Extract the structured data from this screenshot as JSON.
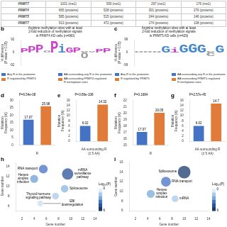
{
  "chart_data": [
    {
      "type": "table",
      "rows": [
        [
          "PRMT7",
          "1031 (me1)",
          "939 (me1)",
          "297 (me1)",
          "176 (me1)"
        ],
        [
          "PRMT4",
          "665 (proteins)",
          "528 (proteins)",
          "301 (proteins)",
          "276 (proteins)"
        ],
        [
          "PRMT5",
          "585 (proteins)",
          "515 (proteins)",
          "244 (proteins)",
          "146 (proteins)"
        ],
        [
          "PRMT7",
          "513 (proteins)",
          "472 (proteins)",
          "174 (proteins)",
          "108 (proteins)"
        ]
      ]
    },
    {
      "type": "logo",
      "panel": "b",
      "title": "Arginine methylation sites with at least\n2-fold reduction of methylation signals\nin PRMT4 KD cells (n=660)",
      "categories": [
        "P",
        "P",
        "P",
        "o",
        "P",
        "i",
        "G",
        "P",
        "o",
        "v",
        "P",
        "P"
      ],
      "values": [
        30,
        45,
        55,
        15,
        80,
        60,
        40,
        35,
        10,
        10,
        25,
        30
      ],
      "negative_values": [
        0,
        0,
        0,
        0,
        0,
        0,
        0,
        0,
        -40,
        0,
        0,
        0
      ],
      "colors": [
        "#cc44cc",
        "#cc44cc",
        "#cc44cc",
        "#999999",
        "#cc44cc",
        "#4488cc",
        "#cc44cc",
        "#cc44cc",
        "#999999",
        "#999999",
        "#cc44cc",
        "#cc44cc"
      ],
      "ylabel": "% difference\n(P value = 0.05)",
      "ylim": [
        -92,
        92
      ],
      "yticks": [
        -92,
        0,
        92
      ],
      "tick_labels": "y",
      "grid": false
    },
    {
      "type": "logo",
      "panel": "c",
      "title": "Arginine methylation sites with at least\n2-fold reduction of methylation signals\nin PRMT5 KD cells (n=429)",
      "categories": [
        "o",
        "o",
        "o",
        "G",
        "i",
        "G",
        "G",
        "G",
        "c",
        "G"
      ],
      "values": [
        10,
        12,
        10,
        50,
        35,
        65,
        70,
        60,
        10,
        55
      ],
      "negative_values": [
        0,
        0,
        0,
        0,
        0,
        0,
        0,
        0,
        -30,
        0
      ],
      "colors": [
        "#999999",
        "#999999",
        "#999999",
        "#4488cc",
        "#cc44cc",
        "#4488cc",
        "#4488cc",
        "#4488cc",
        "#999999",
        "#4488cc"
      ],
      "ylabel": "% difference\n(P value = 0.05)",
      "ylim": [
        -99,
        99
      ],
      "yticks": [
        -99,
        0,
        99
      ],
      "tick_labels": "y",
      "grid": false
    },
    {
      "type": "bar",
      "panel": "d",
      "subtitle": "P=6.54e-08",
      "categories": [
        null,
        null
      ],
      "series": [
        {
          "name": "Any R in the proteome",
          "color": "#4472c4",
          "values": [
            17.07,
            null
          ]
        },
        {
          "name": "R regulated by PRMT4",
          "color": "#e07b39",
          "values": [
            null,
            25.98
          ]
        }
      ],
      "xlabel": "R",
      "ylabel": "Mutation\nFrequency (%)",
      "ylim": [
        0,
        30
      ],
      "yticks": [
        0,
        5,
        10,
        15,
        20,
        25,
        30
      ],
      "data_labels": true,
      "tick_labels": "y",
      "grid": false,
      "legend": "top"
    },
    {
      "type": "bar",
      "panel": "e",
      "subtitle": "P=3.89e-108",
      "categories": [
        null,
        null
      ],
      "series": [
        {
          "name": "AA surrounding any R in the proteome",
          "color": "#4472c4",
          "values": [
            6.02,
            null
          ]
        },
        {
          "name": "AA surrounding PRMT4-regulated\nR methylation sites",
          "color": "#e07b39",
          "values": [
            null,
            14.32
          ]
        }
      ],
      "xlabel": "AA surrounding R\n(± 5 AA)",
      "ylabel": "Mutation\nFrequency (%)",
      "ylim": [
        0,
        16
      ],
      "yticks": [
        0,
        2,
        4,
        6,
        8,
        10,
        12,
        14,
        16
      ],
      "data_labels": true,
      "tick_labels": "y",
      "grid": false,
      "legend": "top"
    },
    {
      "type": "bar",
      "panel": "f",
      "subtitle": "P=0.1684",
      "categories": [
        null,
        null
      ],
      "series": [
        {
          "name": "Any R in the proteome",
          "color": "#4472c4",
          "values": [
            17.07,
            null
          ]
        },
        {
          "name": "R regulated by PRMT5",
          "color": "#e07b39",
          "values": [
            null,
            20.05
          ]
        }
      ],
      "xlabel": "R",
      "ylabel": "Mutation\nFrequency (%)",
      "ylim": [
        15,
        22
      ],
      "yticks": [
        15,
        16,
        17,
        18,
        19,
        20,
        21,
        22
      ],
      "data_labels": true,
      "tick_labels": "y",
      "grid": false,
      "legend": "top"
    },
    {
      "type": "bar",
      "panel": "g",
      "subtitle": "P=2.57e-45",
      "categories": [
        null,
        null
      ],
      "series": [
        {
          "name": "AA surrounding any R in the proteome",
          "color": "#4472c4",
          "values": [
            6.02,
            null
          ]
        },
        {
          "name": "AA surrounding PRMT5-regulated\nR methylation sites",
          "color": "#e07b39",
          "values": [
            null,
            14.7
          ]
        }
      ],
      "xlabel": "AA surrounding R\n(± 5 AA)",
      "ylabel": "Mutation\nFrequency (%)",
      "ylim": [
        0,
        16
      ],
      "yticks": [
        0,
        2,
        4,
        6,
        8,
        10,
        12,
        14,
        16
      ],
      "data_labels": true,
      "tick_labels": "y",
      "grid": false,
      "legend": "top"
    },
    {
      "type": "bubble",
      "panel": "h",
      "x": [
        5.5,
        9.5,
        4.0,
        9.0,
        7.5,
        5.0
      ],
      "y": [
        13.5,
        12.5,
        11.5,
        9.5,
        8.0,
        6.5
      ],
      "sizes": [
        120,
        200,
        100,
        90,
        70,
        50
      ],
      "colors": [
        "#4472c4",
        "#2a5298",
        "#6a9fd8",
        "#8cb4df",
        "#aac8ea",
        "#ccdcf0"
      ],
      "annotations": [
        "RNA transport",
        "mRNA\nsurveillance\npathway",
        "Herpes\nsimplex\ninfection",
        "Spliceosome",
        "Thyroid hormone\nsignaling pathway",
        "EBI\ndownregulation"
      ],
      "xlabel": "Gene number",
      "ylabel": "Gene number",
      "xlim": [
        1,
        14
      ],
      "ylim": [
        5,
        15
      ],
      "xticks": [
        2,
        4,
        6,
        8,
        10,
        12,
        14
      ],
      "yticks": [
        6,
        8,
        10,
        12,
        14
      ],
      "grid": false,
      "colorbar": {
        "title": "Log₁₀(P)",
        "colors": [
          "#ddeeff",
          "#aac8ea",
          "#7aaad8",
          "#4472c4",
          "#2a5298",
          "#1a3a6b"
        ],
        "range": [
          0,
          6
        ],
        "ticks": [
          0,
          6
        ]
      }
    },
    {
      "type": "bubble",
      "panel": "i",
      "x": [
        10.0,
        7.0,
        4.5,
        8.5
      ],
      "y": [
        14.0,
        12.0,
        9.5,
        8.5
      ],
      "sizes": [
        250,
        150,
        100,
        70
      ],
      "colors": [
        "#1a3a6b",
        "#4472c4",
        "#7aaad8",
        "#aac8ea"
      ],
      "annotations": [
        "Spliceosome",
        "RNA transport",
        "Herpes\nsimplex\ninfection",
        "mRNA"
      ],
      "xlabel": "Gene number",
      "ylabel": "Gene number",
      "xlim": [
        1,
        14
      ],
      "ylim": [
        6,
        16
      ],
      "xticks": [
        2,
        4,
        6,
        8,
        10,
        12,
        14
      ],
      "yticks": [
        6,
        8,
        10,
        12,
        14,
        16
      ],
      "grid": false,
      "colorbar": {
        "title": "Log₁₀(P)",
        "colors": [
          "#ddeeff",
          "#aac8ea",
          "#7aaad8",
          "#4472c4",
          "#2a5298",
          "#1a3a6b"
        ],
        "range": [
          0,
          6
        ],
        "ticks": [
          0,
          6
        ]
      }
    }
  ]
}
